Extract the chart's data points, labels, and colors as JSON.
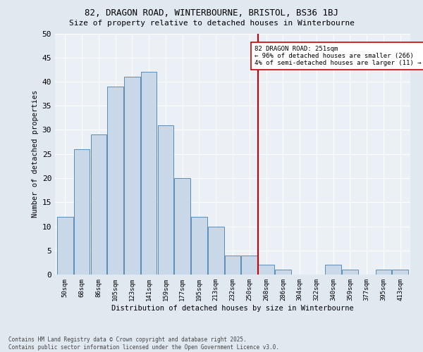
{
  "title1": "82, DRAGON ROAD, WINTERBOURNE, BRISTOL, BS36 1BJ",
  "title2": "Size of property relative to detached houses in Winterbourne",
  "xlabel": "Distribution of detached houses by size in Winterbourne",
  "ylabel": "Number of detached properties",
  "bar_labels": [
    "50sqm",
    "68sqm",
    "86sqm",
    "105sqm",
    "123sqm",
    "141sqm",
    "159sqm",
    "177sqm",
    "195sqm",
    "213sqm",
    "232sqm",
    "250sqm",
    "268sqm",
    "286sqm",
    "304sqm",
    "322sqm",
    "340sqm",
    "359sqm",
    "377sqm",
    "395sqm",
    "413sqm"
  ],
  "bar_heights": [
    12,
    26,
    29,
    39,
    41,
    42,
    31,
    20,
    12,
    10,
    4,
    4,
    2,
    1,
    0,
    0,
    2,
    1,
    0,
    1,
    1
  ],
  "bar_color": "#c8d8e8",
  "bar_edge_color": "#5b8db8",
  "vline_idx": 11.5,
  "vline_color": "#cc0000",
  "annotation_text": "82 DRAGON ROAD: 251sqm\n← 96% of detached houses are smaller (266)\n4% of semi-detached houses are larger (11) →",
  "annotation_box_color": "#ffffff",
  "annotation_box_edge": "#cc0000",
  "ylim": [
    0,
    50
  ],
  "yticks": [
    0,
    5,
    10,
    15,
    20,
    25,
    30,
    35,
    40,
    45,
    50
  ],
  "footnote": "Contains HM Land Registry data © Crown copyright and database right 2025.\nContains public sector information licensed under the Open Government Licence v3.0.",
  "bg_color": "#e0e8f0",
  "plot_bg_color": "#eaf0f6"
}
